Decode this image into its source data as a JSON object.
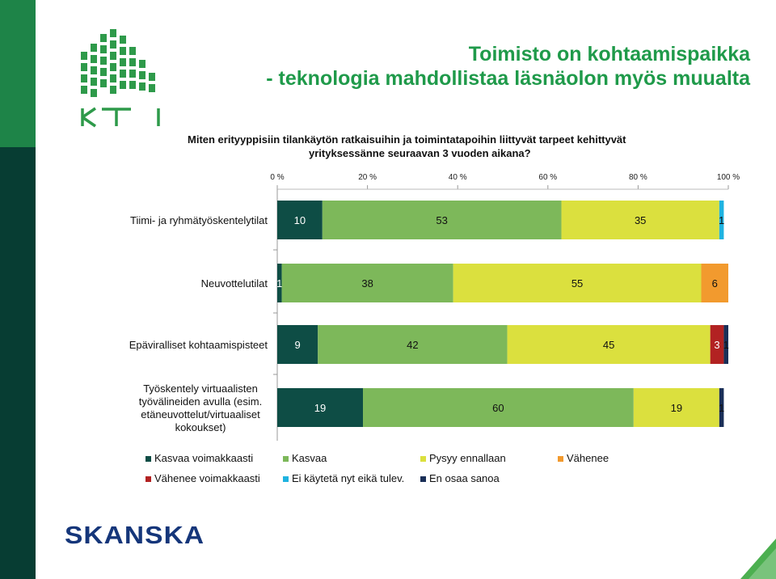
{
  "slide": {
    "title_line1": "Toimisto on kohtaamispaikka",
    "title_line2": "- teknologia mahdollistaa läsnäolon  myös muualta",
    "logo_text": "KTI",
    "footer_logo_text": "SKANSKA"
  },
  "chart_data": {
    "type": "bar",
    "orientation": "horizontal",
    "stacked": true,
    "title_line1": "Miten erityyppisiin  tilankäytön ratkaisuihin ja toimintatapoihin liittyvät tarpeet kehittyvät",
    "title_line2": "yrityksessänne seuraavan 3 vuoden aikana?",
    "xlim": [
      0,
      100
    ],
    "x_ticks": [
      "0 %",
      "20 %",
      "40 %",
      "60 %",
      "80 %",
      "100 %"
    ],
    "x_tick_values": [
      0,
      20,
      40,
      60,
      80,
      100
    ],
    "legend_position": "bottom",
    "categories": [
      [
        "Tiimi- ja ryhmätyöskentelytilat"
      ],
      [
        "Neuvottelutilat"
      ],
      [
        "Epäviralliset kohtaamispisteet"
      ],
      [
        "Työskentely virtuaalisten",
        "työvälineiden avulla (esim.",
        "etäneuvottelut/virtuaaliset",
        "kokoukset)"
      ]
    ],
    "series": [
      {
        "name": "Kasvaa voimakkaasti",
        "color": "#0e4d45",
        "label_color": "#ffffff",
        "values": [
          10,
          1,
          9,
          19
        ]
      },
      {
        "name": "Kasvaa",
        "color": "#7db85a",
        "label_color": "#111111",
        "values": [
          53,
          38,
          42,
          60
        ]
      },
      {
        "name": "Pysyy ennallaan",
        "color": "#dbe03e",
        "label_color": "#111111",
        "values": [
          35,
          55,
          45,
          19
        ]
      },
      {
        "name": "Vähenee",
        "color": "#f29a2e",
        "label_color": "#111111",
        "values": [
          0,
          6,
          0,
          0
        ]
      },
      {
        "name": "Vähenee voimakkaasti",
        "color": "#b22222",
        "label_color": "#ffffff",
        "values": [
          0,
          0,
          3,
          0
        ]
      },
      {
        "name": "Ei käytetä nyt eikä tulev.",
        "color": "#1fb3e0",
        "label_color": "#111111",
        "values": [
          1,
          0,
          0,
          0
        ]
      },
      {
        "name": "En osaa sanoa",
        "color": "#1a2f57",
        "label_color": "#111111",
        "values": [
          0,
          0,
          1,
          1
        ]
      }
    ]
  }
}
